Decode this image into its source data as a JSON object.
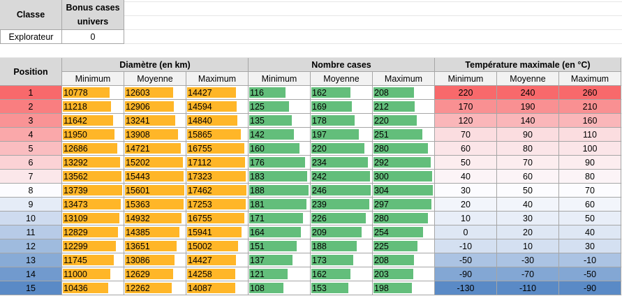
{
  "class_table": {
    "headers": [
      "Classe",
      "Bonus cases univers"
    ],
    "row": [
      "Explorateur",
      0
    ]
  },
  "table": {
    "position_header": "Position",
    "groups": [
      {
        "title": "Diamètre (en km)",
        "subheaders": [
          "Minimum",
          "Moyenne",
          "Maximum"
        ]
      },
      {
        "title": "Nombre cases",
        "subheaders": [
          "Minimum",
          "Moyenne",
          "Maximum"
        ]
      },
      {
        "title": "Température maximale (en °C)",
        "subheaders": [
          "Minimum",
          "Moyenne",
          "Maximum"
        ]
      }
    ],
    "rows": [
      [
        1,
        10778,
        12603,
        14427,
        116,
        162,
        208,
        220,
        240,
        260
      ],
      [
        2,
        11218,
        12906,
        14594,
        125,
        169,
        212,
        170,
        190,
        210
      ],
      [
        3,
        11642,
        13241,
        14840,
        135,
        178,
        220,
        120,
        140,
        160
      ],
      [
        4,
        11950,
        13908,
        15865,
        142,
        197,
        251,
        70,
        90,
        110
      ],
      [
        5,
        12686,
        14721,
        16755,
        160,
        220,
        280,
        60,
        80,
        100
      ],
      [
        6,
        13292,
        15202,
        17112,
        176,
        234,
        292,
        50,
        70,
        90
      ],
      [
        7,
        13562,
        15443,
        17323,
        183,
        242,
        300,
        40,
        60,
        80
      ],
      [
        8,
        13739,
        15601,
        17462,
        188,
        246,
        304,
        30,
        50,
        70
      ],
      [
        9,
        13473,
        15363,
        17253,
        181,
        239,
        297,
        20,
        40,
        60
      ],
      [
        10,
        13109,
        14932,
        16755,
        171,
        226,
        280,
        10,
        30,
        50
      ],
      [
        11,
        12829,
        14385,
        15941,
        164,
        209,
        254,
        0,
        20,
        40
      ],
      [
        12,
        12299,
        13651,
        15002,
        151,
        188,
        225,
        -10,
        10,
        30
      ],
      [
        13,
        11745,
        13086,
        14427,
        137,
        173,
        208,
        -50,
        -30,
        -10
      ],
      [
        14,
        11000,
        12629,
        14258,
        121,
        162,
        203,
        -90,
        -70,
        -50
      ],
      [
        15,
        10436,
        12262,
        14087,
        108,
        153,
        198,
        -130,
        -110,
        -90
      ]
    ]
  }
}
